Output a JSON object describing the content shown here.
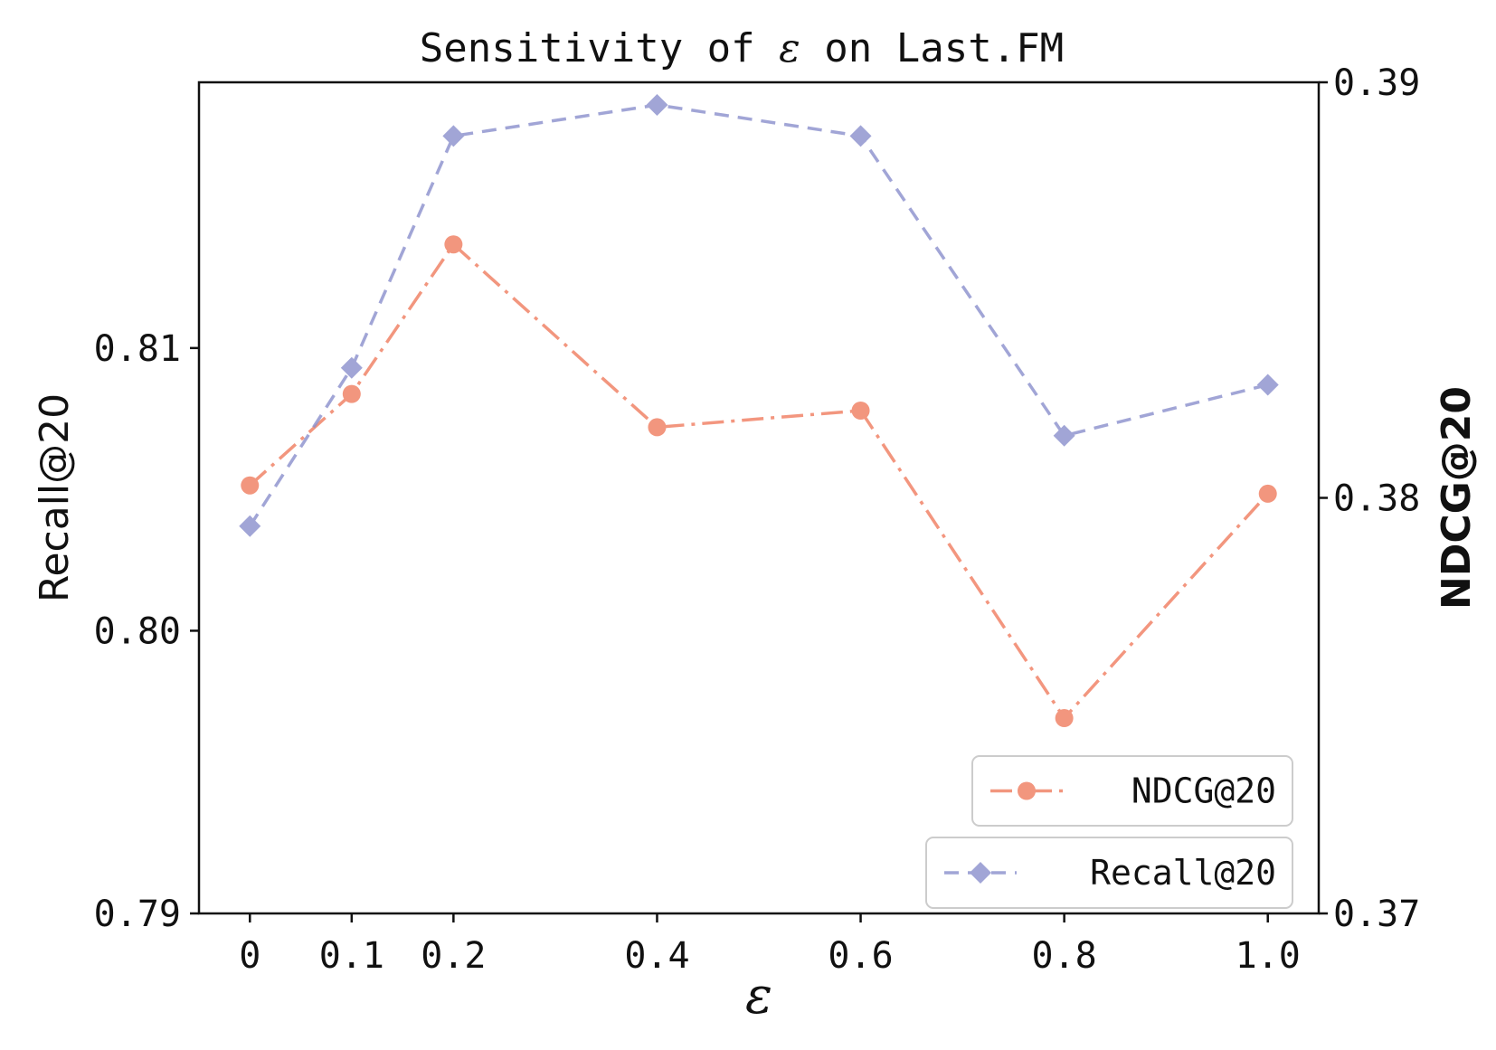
{
  "chart_data": {
    "type": "line",
    "title": {
      "prefix": "Sensitivity of ",
      "symbol": "ε",
      "suffix": " on Last.FM"
    },
    "xlabel": "ε",
    "ylabel_left": "Recall@20",
    "ylabel_right": "NDCG@20",
    "x": [
      0,
      0.1,
      0.2,
      0.4,
      0.6,
      0.8,
      1.0
    ],
    "x_tick_labels": [
      "0",
      "0.1",
      "0.2",
      "0.4",
      "0.6",
      "0.8",
      "1.0"
    ],
    "xlim": [
      -0.05,
      1.05
    ],
    "y_left_lim": [
      0.79,
      0.8194
    ],
    "y_left_ticks": [
      "0.79",
      "0.80",
      "0.81"
    ],
    "y_right_lim": [
      0.37,
      0.39
    ],
    "y_right_ticks": [
      "0.37",
      "0.38",
      "0.39"
    ],
    "grid": false,
    "legend_placement": "bottom-right",
    "series": [
      {
        "name": "NDCG@20",
        "axis": "right",
        "color": "#F07C5F",
        "marker": "circle",
        "line_style": "dashdot",
        "values": [
          0.3803,
          0.3825,
          0.3861,
          0.3817,
          0.3821,
          0.3747,
          0.3801
        ]
      },
      {
        "name": "Recall@20",
        "axis": "left",
        "color": "#8A8FCC",
        "marker": "diamond",
        "line_style": "dashed",
        "values": [
          0.8037,
          0.8093,
          0.8175,
          0.8186,
          0.8175,
          0.8069,
          0.8087
        ]
      }
    ]
  }
}
